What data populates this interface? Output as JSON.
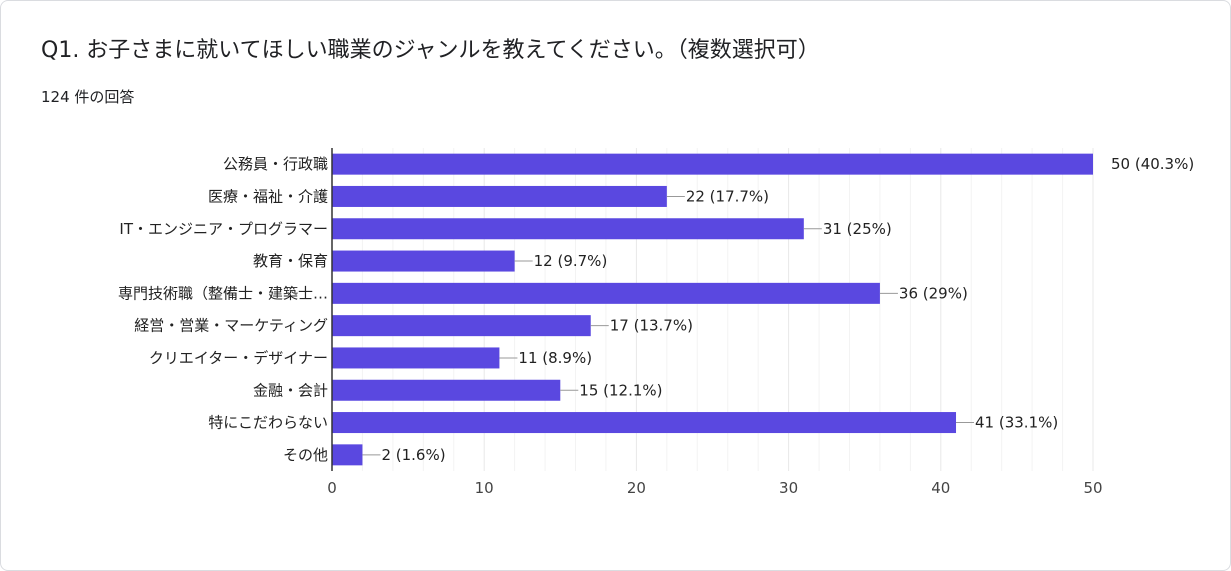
{
  "header": {
    "question": "Q1. お子さまに就いてほしい職業のジャンルを教えてください。（複数選択可）",
    "response_count": "124 件の回答"
  },
  "colors": {
    "bar": "#5a48e0",
    "grid": "#e8e8e8",
    "axis": "#333333"
  },
  "chart_data": {
    "type": "bar",
    "orientation": "horizontal",
    "categories": [
      "公務員・行政職",
      "医療・福祉・介護",
      "IT・エンジニア・プログラマー",
      "教育・保育",
      "専門技術職（整備士・建築士…",
      "経営・営業・マーケティング",
      "クリエイター・デザイナー",
      "金融・会計",
      "特にこだわらない",
      "その他"
    ],
    "values": [
      50,
      22,
      31,
      12,
      36,
      17,
      11,
      15,
      41,
      2
    ],
    "data_labels": [
      "50 (40.3%)",
      "22 (17.7%)",
      "31 (25%)",
      "12 (9.7%)",
      "36 (29%)",
      "17 (13.7%)",
      "11 (8.9%)",
      "15 (12.1%)",
      "41 (33.1%)",
      "2 (1.6%)"
    ],
    "xlim": [
      0,
      50
    ],
    "xticks": [
      0,
      10,
      20,
      30,
      40,
      50
    ],
    "grid": true
  }
}
